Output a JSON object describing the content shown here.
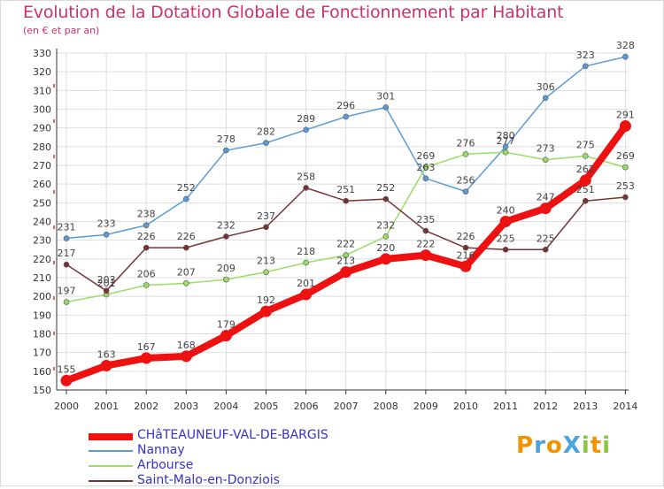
{
  "title": "Evolution de la Dotation Globale de Fonctionnement par Habitant",
  "subtitle": "(en € et par an)",
  "logo": {
    "text": "ProXiti",
    "colors": [
      "#f29400",
      "#4aa3df",
      "#f29400",
      "#4aa3df",
      "#8cc63f",
      "#f29400",
      "#8cc63f"
    ]
  },
  "chart_data": {
    "type": "line",
    "x": [
      2000,
      2001,
      2002,
      2003,
      2004,
      2005,
      2006,
      2007,
      2008,
      2009,
      2010,
      2011,
      2012,
      2013,
      2014
    ],
    "ylim": [
      150,
      330
    ],
    "yticks": [
      150,
      160,
      170,
      180,
      190,
      200,
      210,
      220,
      230,
      240,
      250,
      260,
      270,
      280,
      290,
      300,
      310,
      320,
      330
    ],
    "grid": true,
    "legend_position": "bottom-left",
    "series": [
      {
        "name": "CHâTEAUNEUF-VAL-DE-BARGIS",
        "color": "#ee1111",
        "width": 8,
        "values": [
          155,
          163,
          167,
          168,
          179,
          192,
          201,
          213,
          220,
          222,
          216,
          240,
          247,
          262,
          291
        ]
      },
      {
        "name": "Nannay",
        "color": "#5b9bd5",
        "width": 1.5,
        "values": [
          231,
          233,
          238,
          252,
          278,
          282,
          289,
          296,
          301,
          263,
          256,
          280,
          306,
          323,
          328
        ]
      },
      {
        "name": "Arbourse",
        "color": "#99dd66",
        "width": 1.5,
        "values": [
          197,
          201,
          206,
          207,
          209,
          213,
          218,
          222,
          232,
          269,
          276,
          277,
          273,
          275,
          269
        ]
      },
      {
        "name": "Saint-Malo-en-Donziois",
        "color": "#773333",
        "width": 1.5,
        "values": [
          217,
          203,
          226,
          226,
          232,
          237,
          258,
          251,
          252,
          235,
          226,
          225,
          225,
          251,
          253
        ]
      }
    ]
  }
}
